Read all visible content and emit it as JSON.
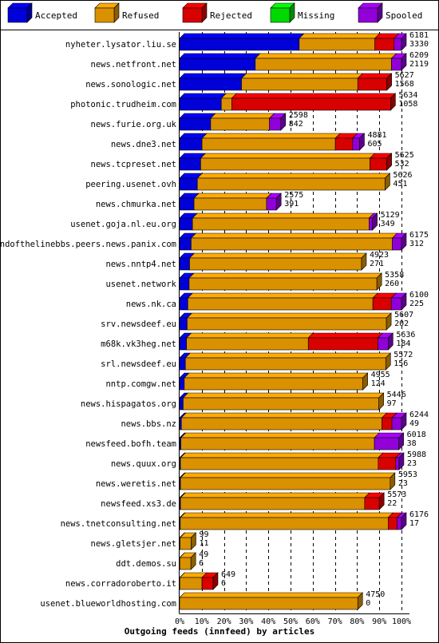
{
  "chart_data": {
    "type": "bar",
    "title": "Outgoing feeds (innfeed) by articles",
    "legend_position": "top",
    "legend": [
      {
        "key": "accepted",
        "label": "Accepted",
        "color": "#0000ff"
      },
      {
        "key": "refused",
        "label": "Refused",
        "color": "#ffaa00"
      },
      {
        "key": "rejected",
        "label": "Rejected",
        "color": "#ff0000"
      },
      {
        "key": "missing",
        "label": "Missing",
        "color": "#00ff00"
      },
      {
        "key": "spooled",
        "label": "Spooled",
        "color": "#aa00ff"
      }
    ],
    "x_ticks": [
      "0%",
      "10%",
      "20%",
      "30%",
      "40%",
      "50%",
      "60%",
      "70%",
      "80%",
      "90%",
      "100%"
    ],
    "xlim": [
      0,
      100
    ],
    "grid": true,
    "rows": [
      {
        "label": "nyheter.lysator.liu.se",
        "total": "6181",
        "accepted_count": "3330",
        "accepted": 53.9,
        "refused": 34.1,
        "rejected": 8.7,
        "missing": 0,
        "spooled": 3.3
      },
      {
        "label": "news.netfront.net",
        "total": "6209",
        "accepted_count": "2119",
        "accepted": 34.1,
        "refused": 61.4,
        "rejected": 0,
        "missing": 0,
        "spooled": 4.5
      },
      {
        "label": "news.sonologic.net",
        "total": "5627",
        "accepted_count": "1568",
        "accepted": 27.9,
        "refused": 52.4,
        "rejected": 13.1,
        "missing": 0,
        "spooled": 0
      },
      {
        "label": "photonic.trudheim.com",
        "total": "5634",
        "accepted_count": "1058",
        "accepted": 18.8,
        "refused": 4.7,
        "rejected": 71.6,
        "missing": 0,
        "spooled": 0
      },
      {
        "label": "news.furie.org.uk",
        "total": "2598",
        "accepted_count": "842",
        "accepted": 14.0,
        "refused": 26.5,
        "rejected": 0,
        "missing": 0,
        "spooled": 5.1
      },
      {
        "label": "news.dne3.net",
        "total": "4881",
        "accepted_count": "605",
        "accepted": 10.1,
        "refused": 60.1,
        "rejected": 7.8,
        "missing": 0,
        "spooled": 3.1
      },
      {
        "label": "news.tcpreset.net",
        "total": "5625",
        "accepted_count": "532",
        "accepted": 9.5,
        "refused": 76.3,
        "rejected": 7.6,
        "missing": 0,
        "spooled": 0
      },
      {
        "label": "peering.usenet.ovh",
        "total": "5626",
        "accepted_count": "451",
        "accepted": 8.0,
        "refused": 84.6,
        "rejected": 0,
        "missing": 0,
        "spooled": 0
      },
      {
        "label": "news.chmurka.net",
        "total": "2575",
        "accepted_count": "391",
        "accepted": 6.5,
        "refused": 32.7,
        "rejected": 0,
        "missing": 0,
        "spooled": 4.4
      },
      {
        "label": "usenet.goja.nl.eu.org",
        "total": "5129",
        "accepted_count": "349",
        "accepted": 5.8,
        "refused": 79.6,
        "rejected": 0,
        "missing": 0,
        "spooled": 1.5
      },
      {
        "label": "endofthelinebbs.peers.news.panix.com",
        "total": "6175",
        "accepted_count": "312",
        "accepted": 5.2,
        "refused": 90.7,
        "rejected": 0,
        "missing": 0,
        "spooled": 4.1
      },
      {
        "label": "news.nntp4.net",
        "total": "4923",
        "accepted_count": "271",
        "accepted": 4.5,
        "refused": 77.5,
        "rejected": 0,
        "missing": 0,
        "spooled": 0
      },
      {
        "label": "usenet.network",
        "total": "5358",
        "accepted_count": "260",
        "accepted": 4.3,
        "refused": 84.6,
        "rejected": 0,
        "missing": 0,
        "spooled": 0
      },
      {
        "label": "news.nk.ca",
        "total": "6100",
        "accepted_count": "225",
        "accepted": 3.7,
        "refused": 83.4,
        "rejected": 8.3,
        "missing": 0,
        "spooled": 4.6
      },
      {
        "label": "srv.newsdeef.eu",
        "total": "5607",
        "accepted_count": "202",
        "accepted": 3.4,
        "refused": 89.8,
        "rejected": 0,
        "missing": 0,
        "spooled": 0
      },
      {
        "label": "m68k.vk3heg.net",
        "total": "5636",
        "accepted_count": "184",
        "accepted": 3.1,
        "refused": 54.9,
        "rejected": 31.4,
        "missing": 0,
        "spooled": 4.6
      },
      {
        "label": "srl.newsdeef.eu",
        "total": "5572",
        "accepted_count": "156",
        "accepted": 2.6,
        "refused": 90.3,
        "rejected": 0,
        "missing": 0,
        "spooled": 0
      },
      {
        "label": "nntp.comgw.net",
        "total": "4955",
        "accepted_count": "124",
        "accepted": 2.1,
        "refused": 80.5,
        "rejected": 0,
        "missing": 0,
        "spooled": 0
      },
      {
        "label": "news.hispagatos.org",
        "total": "5446",
        "accepted_count": "97",
        "accepted": 1.6,
        "refused": 88.2,
        "rejected": 0,
        "missing": 0,
        "spooled": 0
      },
      {
        "label": "news.bbs.nz",
        "total": "6244",
        "accepted_count": "49",
        "accepted": 0.8,
        "refused": 90.4,
        "rejected": 4.5,
        "missing": 0,
        "spooled": 4.3
      },
      {
        "label": "newsfeed.bofh.team",
        "total": "6018",
        "accepted_count": "38",
        "accepted": 0.6,
        "refused": 87.2,
        "rejected": 0,
        "missing": 0,
        "spooled": 11.0
      },
      {
        "label": "news.quux.org",
        "total": "5988",
        "accepted_count": "23",
        "accepted": 0.4,
        "refused": 89.1,
        "rejected": 7.9,
        "missing": 0,
        "spooled": 1.5
      },
      {
        "label": "news.weretis.net",
        "total": "5953",
        "accepted_count": "23",
        "accepted": 0.4,
        "refused": 94.5,
        "rejected": 0,
        "missing": 0,
        "spooled": 0
      },
      {
        "label": "newsfeed.xs3.de",
        "total": "5573",
        "accepted_count": "22",
        "accepted": 0.4,
        "refused": 83.0,
        "rejected": 6.6,
        "missing": 0,
        "spooled": 0
      },
      {
        "label": "news.tnetconsulting.net",
        "total": "6176",
        "accepted_count": "17",
        "accepted": 0.3,
        "refused": 93.7,
        "rejected": 4.0,
        "missing": 0,
        "spooled": 2.0
      },
      {
        "label": "news.gletsjer.net",
        "total": "99",
        "accepted_count": "11",
        "accepted": 0.2,
        "refused": 5.0,
        "rejected": 0,
        "missing": 0,
        "spooled": 0
      },
      {
        "label": "ddt.demos.su",
        "total": "49",
        "accepted_count": "6",
        "accepted": 0.1,
        "refused": 5.0,
        "rejected": 0,
        "missing": 0,
        "spooled": 0
      },
      {
        "label": "news.corradoroberto.it",
        "total": "649",
        "accepted_count": "6",
        "accepted": 0.1,
        "refused": 10.0,
        "rejected": 5.0,
        "missing": 0,
        "spooled": 0
      },
      {
        "label": "usenet.blueworldhosting.com",
        "total": "4750",
        "accepted_count": "0",
        "accepted": 0,
        "refused": 80.3,
        "rejected": 0,
        "missing": 0,
        "spooled": 0
      }
    ]
  }
}
